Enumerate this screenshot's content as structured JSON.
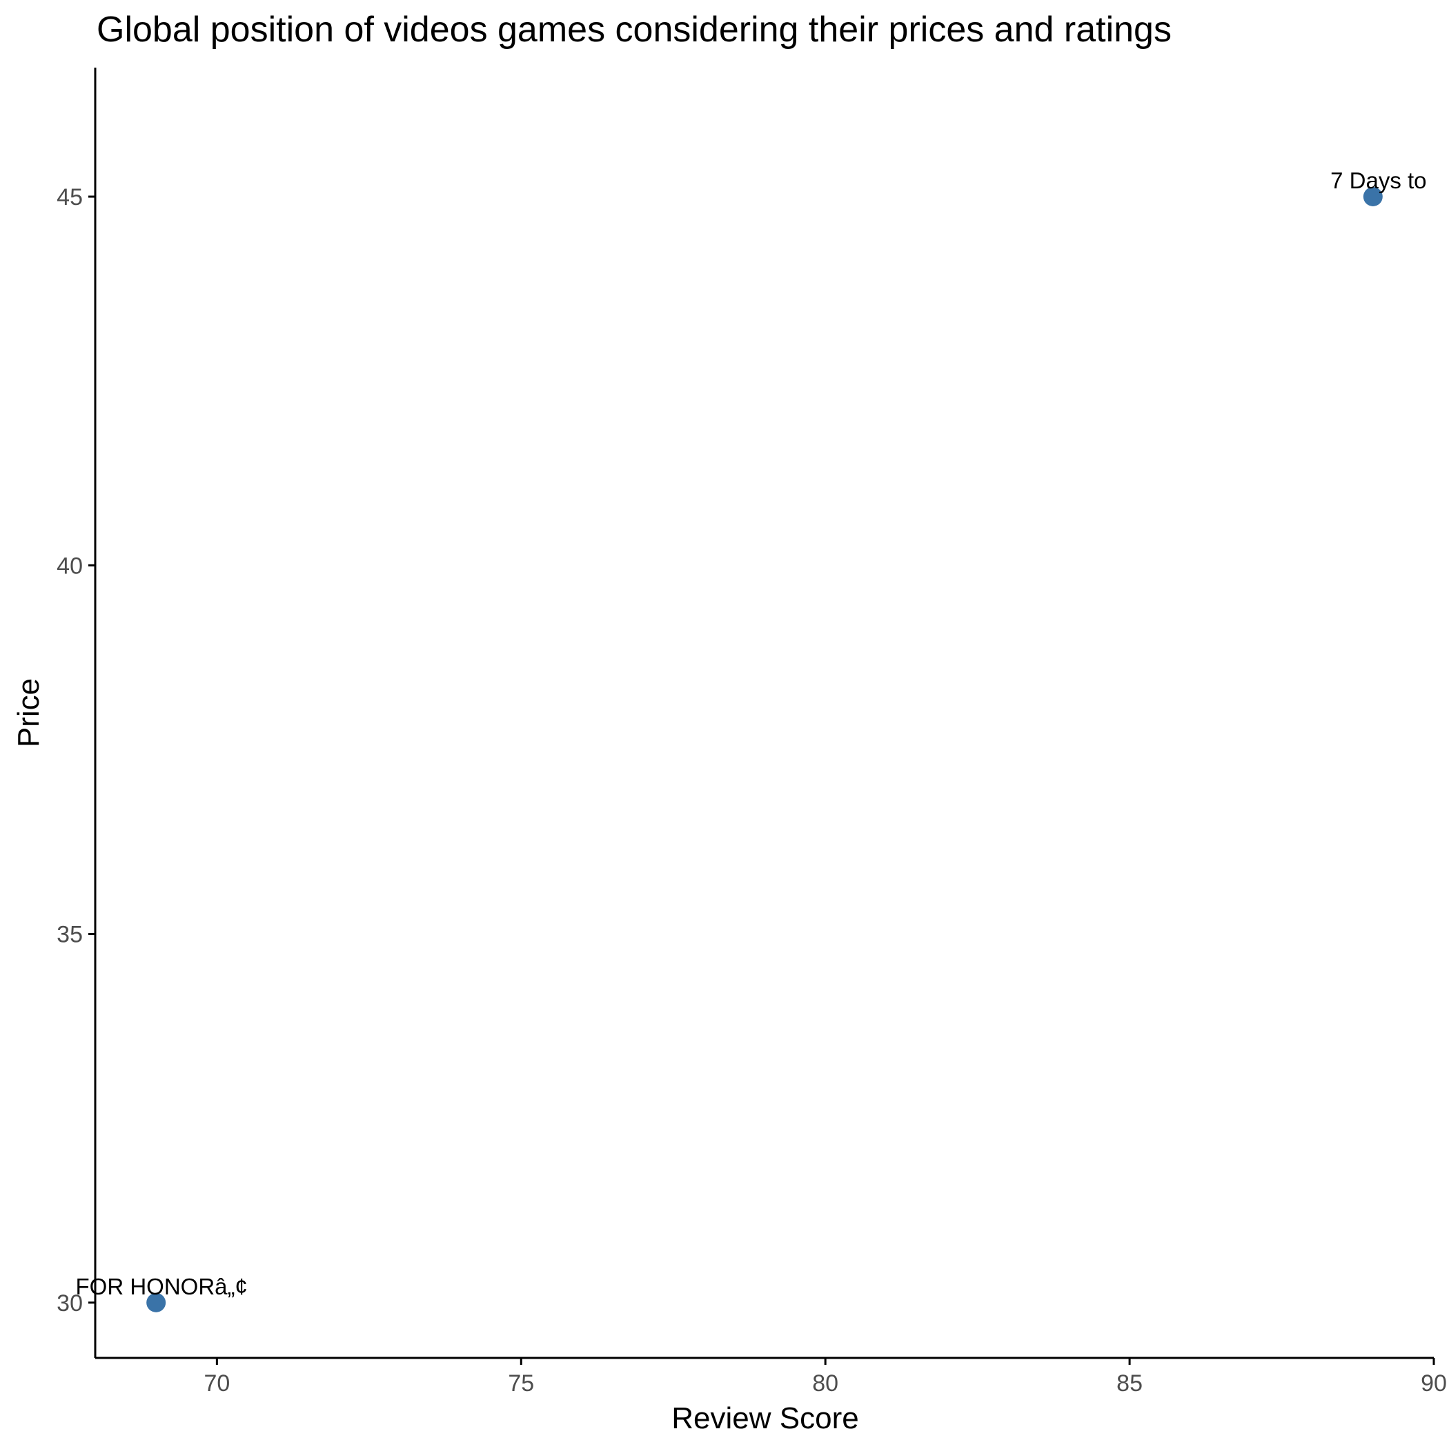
{
  "chart_data": {
    "type": "scatter",
    "title": "Global position of videos games considering their prices and ratings",
    "xlabel": "Review Score",
    "ylabel": "Price",
    "xlim": [
      68,
      90
    ],
    "ylim": [
      29.25,
      46.75
    ],
    "xticks": [
      70,
      75,
      80,
      85,
      90
    ],
    "yticks": [
      30,
      35,
      40,
      45
    ],
    "grid": false,
    "legend": "none",
    "point_color": "#3a73a8",
    "points": [
      {
        "x": 69,
        "y": 30,
        "label": "FOR HONORâ„¢"
      },
      {
        "x": 89,
        "y": 45,
        "label": "7 Days to"
      }
    ]
  }
}
